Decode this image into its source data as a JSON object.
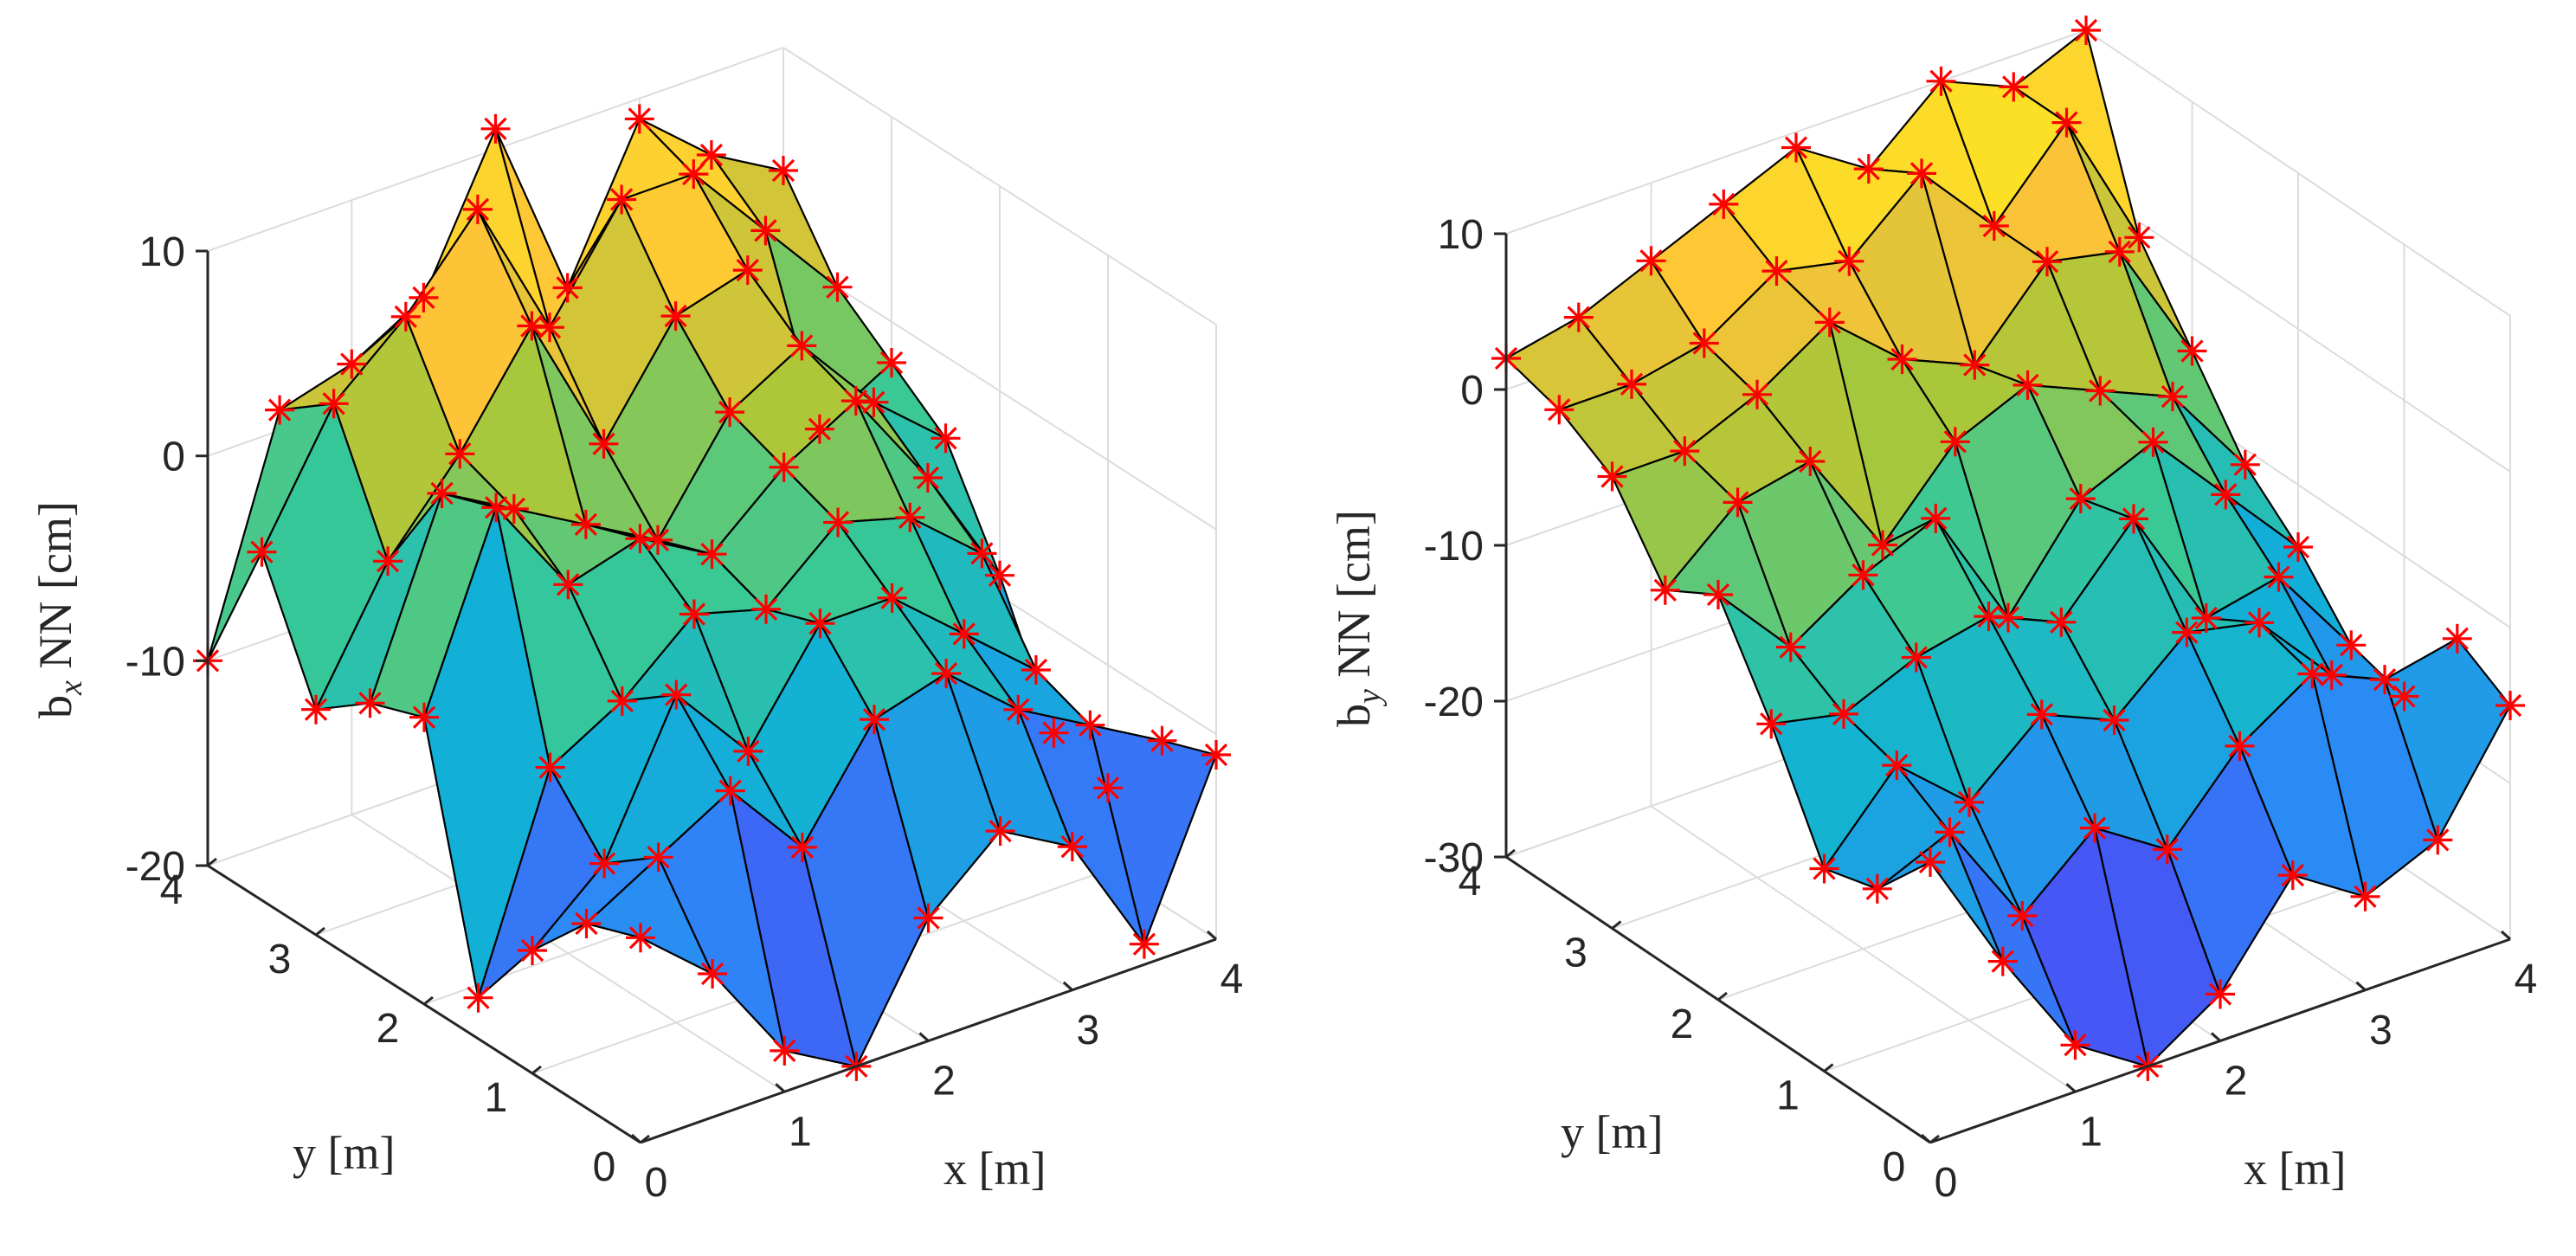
{
  "chart_data": [
    {
      "type": "surface3d",
      "title": "",
      "xlabel": "x [m]",
      "ylabel": "y [m]",
      "zlabel": "b",
      "zlabel_sub": "x",
      "zlabel_rest": " NN [cm]",
      "xlim": [
        0,
        4
      ],
      "ylim": [
        0,
        4
      ],
      "zlim": [
        -20,
        10
      ],
      "xticks": [
        "0",
        "1",
        "2",
        "3",
        "4"
      ],
      "yticks": [
        "0",
        "1",
        "2",
        "3",
        "4"
      ],
      "zticks": [
        "-20",
        "-10",
        "0",
        "10"
      ],
      "grid": true,
      "colormap": "parula",
      "marker": "red asterisk",
      "x": [
        0,
        0.5,
        1,
        1.5,
        2,
        2.5,
        3,
        3.5,
        4
      ],
      "y": [
        0,
        0.5,
        1,
        1.5,
        2,
        2.5,
        3,
        3.5,
        4
      ],
      "z": [
        [
          -10,
          -13,
          -18,
          -20,
          -14,
          -11,
          -13,
          -19,
          -11
        ],
        [
          -11,
          -9,
          -7,
          -11,
          -6,
          -5,
          -8,
          -10,
          -12
        ],
        [
          -14,
          -11,
          -4,
          -8,
          -3,
          -3,
          -6,
          -9,
          -16
        ],
        [
          -18,
          -8,
          -6,
          -3,
          -4,
          -1,
          -2,
          -5,
          -15
        ],
        [
          -6,
          3,
          -2,
          -1,
          -3,
          0,
          2,
          -3,
          -9
        ],
        [
          -7,
          2,
          0,
          -2,
          -4,
          1,
          3,
          -1,
          -4
        ],
        [
          -9,
          -3,
          1,
          6,
          -1,
          4,
          5,
          -4,
          -2
        ],
        [
          -3,
          3,
          6,
          10,
          3,
          8,
          8,
          4,
          0
        ],
        [
          -10,
          1,
          2,
          4,
          11,
          2,
          9,
          6,
          4
        ]
      ]
    },
    {
      "type": "surface3d",
      "title": "",
      "xlabel": "x [m]",
      "ylabel": "y [m]",
      "zlabel": "b",
      "zlabel_sub": "y",
      "zlabel_rest": " NN [cm]",
      "xlim": [
        0,
        4
      ],
      "ylim": [
        0,
        4
      ],
      "zlim": [
        -30,
        10
      ],
      "xticks": [
        "0",
        "1",
        "2",
        "3",
        "4"
      ],
      "yticks": [
        "0",
        "1",
        "2",
        "3",
        "4"
      ],
      "zticks": [
        "-30",
        "-20",
        "-10",
        "0",
        "10"
      ],
      "grid": true,
      "colormap": "parula",
      "marker": "red asterisk",
      "x": [
        0,
        0.5,
        1,
        1.5,
        2,
        2.5,
        3,
        3.5,
        4
      ],
      "y": [
        0,
        0.5,
        1,
        1.5,
        2,
        2.5,
        3,
        3.5,
        4
      ],
      "z": [
        [
          -12,
          -20,
          -27,
          -30,
          -27,
          -21,
          -24,
          -22,
          -15
        ],
        [
          -16,
          -14,
          -21,
          -17,
          -20,
          -15,
          -12,
          -14,
          -13
        ],
        [
          -17,
          -12,
          -16,
          -12,
          -14,
          -10,
          -11,
          -16,
          -19
        ],
        [
          -10,
          -11,
          -9,
          -8,
          -10,
          -5,
          -13,
          -12,
          -18
        ],
        [
          -4,
          -9,
          -6,
          -4,
          -12,
          -6,
          -4,
          -9,
          -14
        ],
        [
          -6,
          -2,
          -1,
          -8,
          -3,
          -1,
          -3,
          -5,
          -11
        ],
        [
          -1,
          -1,
          1,
          4,
          0,
          -2,
          3,
          2,
          -6
        ],
        [
          1,
          1,
          2,
          5,
          4,
          8,
          3,
          8,
          -1
        ],
        [
          2,
          3,
          5,
          7,
          9,
          6,
          10,
          8,
          10
        ]
      ]
    }
  ]
}
